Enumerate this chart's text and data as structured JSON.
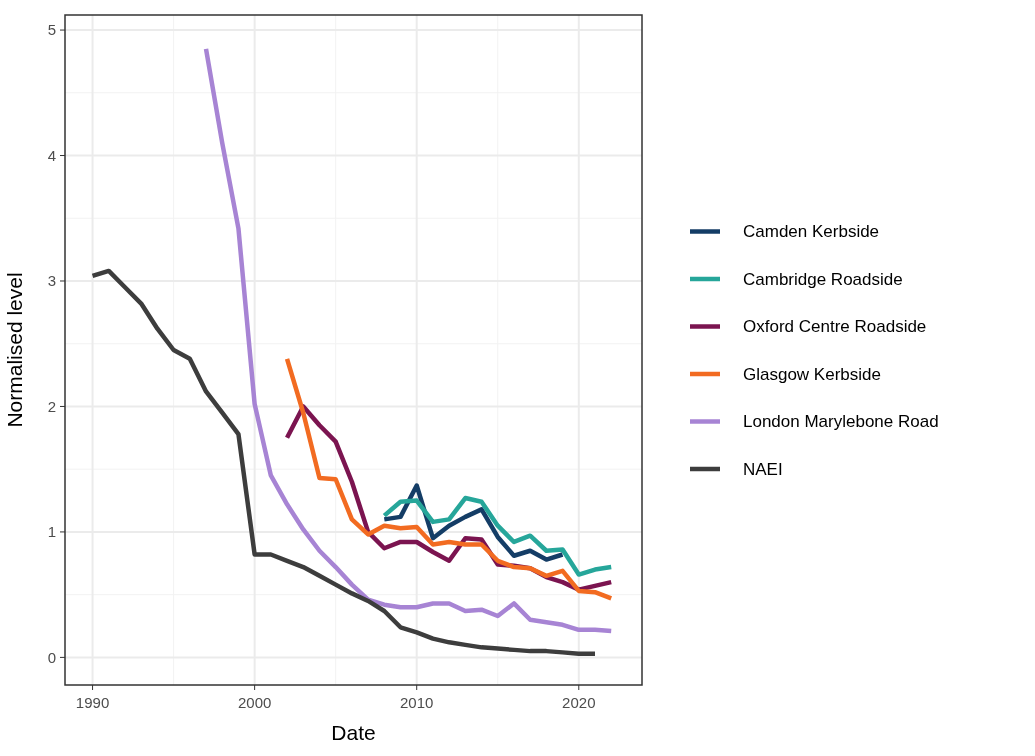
{
  "chart_data": {
    "type": "line",
    "xlabel": "Date",
    "ylabel": "Normalised level",
    "xlim": [
      1988.3,
      2023.9
    ],
    "ylim": [
      -0.22,
      5.12
    ],
    "xticks": [
      1990,
      2000,
      2010,
      2020
    ],
    "yticks": [
      0,
      1,
      2,
      3,
      4,
      5
    ],
    "grid": true,
    "legend": "right",
    "line_style": "solid",
    "series": [
      {
        "name": "Camden Kerbside",
        "color": "#143d66",
        "x": [
          2008,
          2009,
          2010,
          2011,
          2012,
          2013,
          2014,
          2015,
          2016,
          2017,
          2018,
          2019
        ],
        "values": [
          1.1,
          1.12,
          1.37,
          0.95,
          1.05,
          1.12,
          1.18,
          0.96,
          0.81,
          0.85,
          0.78,
          0.82
        ]
      },
      {
        "name": "Cambridge Roadside",
        "color": "#26a69a",
        "x": [
          2008,
          2009,
          2010,
          2011,
          2012,
          2013,
          2014,
          2015,
          2016,
          2017,
          2018,
          2019,
          2020,
          2021,
          2022
        ],
        "values": [
          1.13,
          1.24,
          1.25,
          1.08,
          1.1,
          1.27,
          1.24,
          1.05,
          0.92,
          0.97,
          0.85,
          0.86,
          0.66,
          0.7,
          0.72
        ]
      },
      {
        "name": "Oxford Centre Roadside",
        "color": "#7b1450",
        "x": [
          2002,
          2003,
          2004,
          2005,
          2006,
          2007,
          2008,
          2009,
          2010,
          2011,
          2012,
          2013,
          2014,
          2015,
          2016,
          2017,
          2018,
          2019,
          2020,
          2021,
          2022
        ],
        "values": [
          1.75,
          2.0,
          1.85,
          1.72,
          1.4,
          1.0,
          0.87,
          0.92,
          0.92,
          0.84,
          0.77,
          0.95,
          0.94,
          0.74,
          0.73,
          0.71,
          0.64,
          0.6,
          0.54,
          0.57,
          0.6
        ]
      },
      {
        "name": "Glasgow Kerbside",
        "color": "#f26b21",
        "x": [
          2002,
          2003,
          2004,
          2005,
          2006,
          2007,
          2008,
          2009,
          2010,
          2011,
          2012,
          2013,
          2014,
          2015,
          2016,
          2017,
          2018,
          2019,
          2020,
          2021,
          2022
        ],
        "values": [
          2.38,
          1.95,
          1.43,
          1.42,
          1.1,
          0.98,
          1.05,
          1.03,
          1.04,
          0.9,
          0.92,
          0.9,
          0.9,
          0.77,
          0.72,
          0.71,
          0.65,
          0.69,
          0.53,
          0.52,
          0.47
        ]
      },
      {
        "name": "London Marylebone Road",
        "color": "#a784d4",
        "x": [
          1997,
          1998,
          1999,
          2000,
          2001,
          2002,
          2003,
          2004,
          2005,
          2006,
          2007,
          2008,
          2009,
          2010,
          2011,
          2012,
          2013,
          2014,
          2015,
          2016,
          2017,
          2018,
          2019,
          2020,
          2021,
          2022
        ],
        "values": [
          4.85,
          4.1,
          3.42,
          2.02,
          1.45,
          1.22,
          1.02,
          0.85,
          0.72,
          0.58,
          0.46,
          0.42,
          0.4,
          0.4,
          0.43,
          0.43,
          0.37,
          0.38,
          0.33,
          0.43,
          0.3,
          0.28,
          0.26,
          0.22,
          0.22,
          0.21
        ]
      },
      {
        "name": "NAEI",
        "color": "#3d3d3d",
        "x": [
          1990,
          1991,
          1992,
          1993,
          1994,
          1995,
          1996,
          1997,
          1998,
          1999,
          2000,
          2001,
          2002,
          2003,
          2004,
          2005,
          2006,
          2007,
          2008,
          2009,
          2010,
          2011,
          2012,
          2013,
          2014,
          2015,
          2016,
          2017,
          2018,
          2019,
          2020,
          2021
        ],
        "values": [
          3.04,
          3.08,
          2.95,
          2.82,
          2.62,
          2.45,
          2.38,
          2.12,
          1.95,
          1.78,
          0.82,
          0.82,
          0.77,
          0.72,
          0.65,
          0.58,
          0.51,
          0.45,
          0.37,
          0.24,
          0.2,
          0.15,
          0.12,
          0.1,
          0.08,
          0.07,
          0.06,
          0.05,
          0.05,
          0.04,
          0.03,
          0.03
        ]
      }
    ]
  }
}
